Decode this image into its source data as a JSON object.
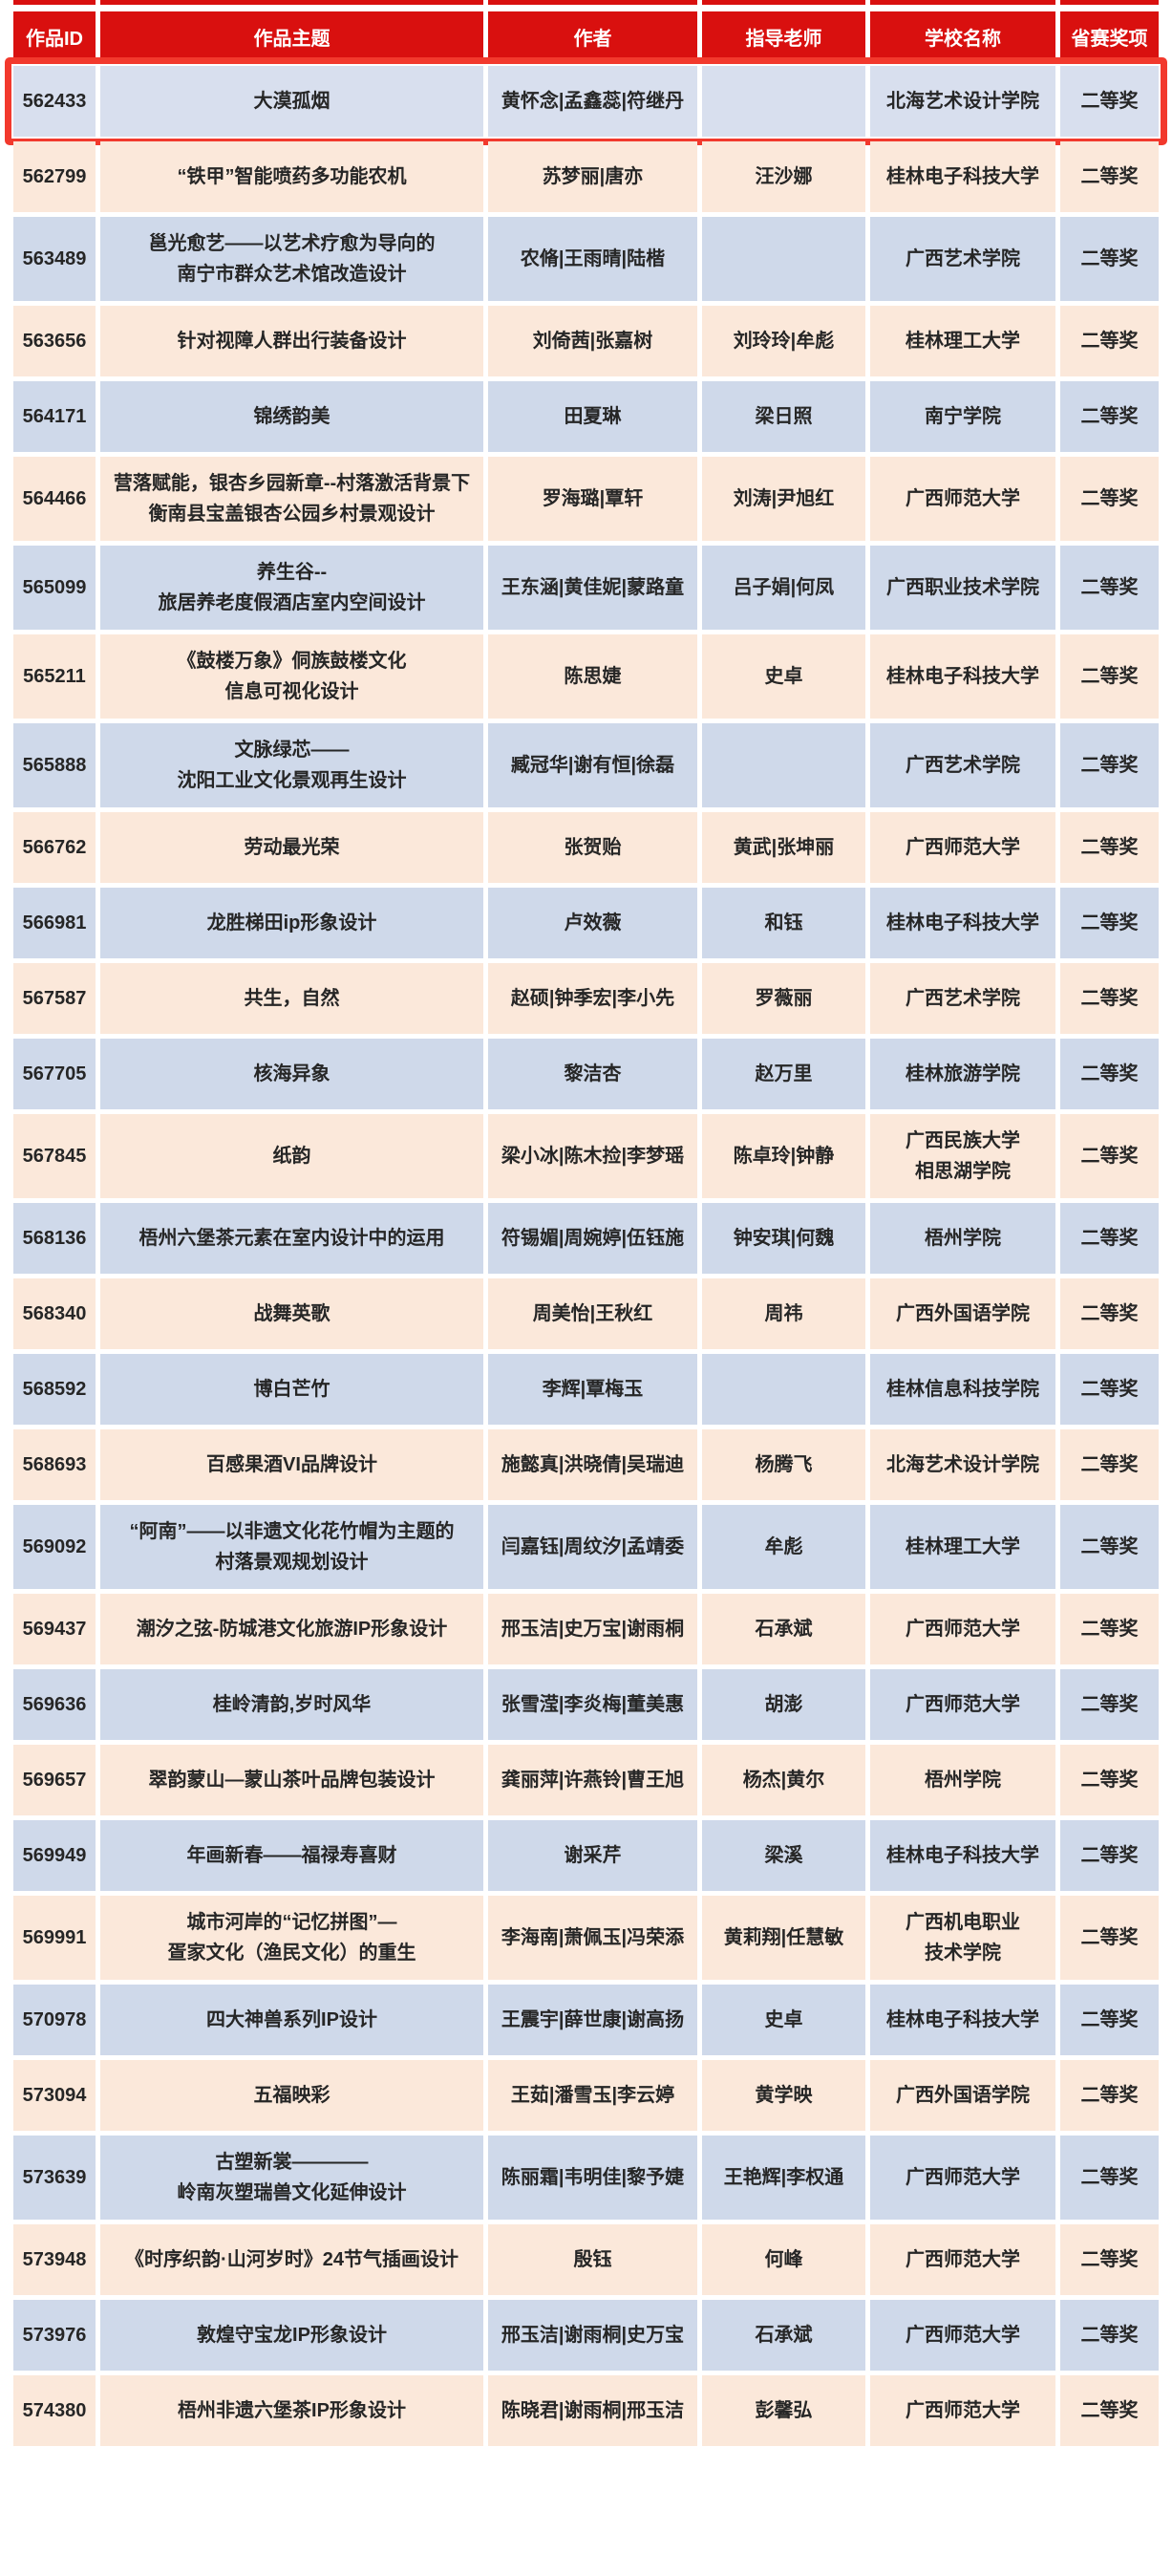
{
  "colors": {
    "header_red": "#d9100f",
    "highlight_ring": "#f2392d",
    "row_blue": "#cfd9ea",
    "row_peach": "#fbe8da",
    "highlight_fill": "#d8dfee",
    "text": "#262626",
    "header_text": "#ffffff",
    "background": "#ffffff"
  },
  "table": {
    "columns": [
      {
        "key": "id",
        "label": "作品ID"
      },
      {
        "key": "theme",
        "label": "作品主题"
      },
      {
        "key": "authors",
        "label": "作者"
      },
      {
        "key": "instructors",
        "label": "指导老师"
      },
      {
        "key": "school",
        "label": "学校名称"
      },
      {
        "key": "award",
        "label": "省赛奖项"
      }
    ],
    "rows": [
      {
        "id": "562433",
        "theme": "大漠孤烟",
        "authors": "黄怀念|孟鑫蕊|符继丹",
        "instructors": "",
        "school": "北海艺术设计学院",
        "award": "二等奖",
        "highlighted": true
      },
      {
        "id": "562799",
        "theme": "“铁甲”智能喷药多功能农机",
        "authors": "苏梦丽|唐亦",
        "instructors": "汪沙娜",
        "school": "桂林电子科技大学",
        "award": "二等奖",
        "highlighted": false
      },
      {
        "id": "563489",
        "theme": "邕光愈艺——以艺术疗愈为导向的\n南宁市群众艺术馆改造设计",
        "authors": "农脩|王雨晴|陆楷",
        "instructors": "",
        "school": "广西艺术学院",
        "award": "二等奖",
        "highlighted": false
      },
      {
        "id": "563656",
        "theme": "针对视障人群出行装备设计",
        "authors": "刘倚茜|张嘉树",
        "instructors": "刘玲玲|牟彪",
        "school": "桂林理工大学",
        "award": "二等奖",
        "highlighted": false
      },
      {
        "id": "564171",
        "theme": "锦绣韵美",
        "authors": "田夏琳",
        "instructors": "梁日照",
        "school": "南宁学院",
        "award": "二等奖",
        "highlighted": false
      },
      {
        "id": "564466",
        "theme": "营落赋能，银杏乡园新章--村落激活背景下\n衡南县宝盖银杏公园乡村景观设计",
        "authors": "罗海璐|覃轩",
        "instructors": "刘涛|尹旭红",
        "school": "广西师范大学",
        "award": "二等奖",
        "highlighted": false
      },
      {
        "id": "565099",
        "theme": "养生谷--\n旅居养老度假酒店室内空间设计",
        "authors": "王东涵|黄佳妮|蒙路童",
        "instructors": "吕子娟|何凤",
        "school": "广西职业技术学院",
        "award": "二等奖",
        "highlighted": false
      },
      {
        "id": "565211",
        "theme": "《鼓楼万象》侗族鼓楼文化\n信息可视化设计",
        "authors": "陈思婕",
        "instructors": "史卓",
        "school": "桂林电子科技大学",
        "award": "二等奖",
        "highlighted": false
      },
      {
        "id": "565888",
        "theme": "文脉绿芯——\n沈阳工业文化景观再生设计",
        "authors": "臧冠华|谢有恒|徐磊",
        "instructors": "",
        "school": "广西艺术学院",
        "award": "二等奖",
        "highlighted": false
      },
      {
        "id": "566762",
        "theme": "劳动最光荣",
        "authors": "张贺贻",
        "instructors": "黄武|张坤丽",
        "school": "广西师范大学",
        "award": "二等奖",
        "highlighted": false
      },
      {
        "id": "566981",
        "theme": "龙胜梯田ip形象设计",
        "authors": "卢效薇",
        "instructors": "和钰",
        "school": "桂林电子科技大学",
        "award": "二等奖",
        "highlighted": false
      },
      {
        "id": "567587",
        "theme": "共生，自然",
        "authors": "赵硕|钟季宏|李小先",
        "instructors": "罗薇丽",
        "school": "广西艺术学院",
        "award": "二等奖",
        "highlighted": false
      },
      {
        "id": "567705",
        "theme": "核海异象",
        "authors": "黎洁杏",
        "instructors": "赵万里",
        "school": "桂林旅游学院",
        "award": "二等奖",
        "highlighted": false
      },
      {
        "id": "567845",
        "theme": "纸韵",
        "authors": "梁小冰|陈木捡|李梦瑶",
        "instructors": "陈卓玲|钟静",
        "school": "广西民族大学\n相思湖学院",
        "award": "二等奖",
        "highlighted": false
      },
      {
        "id": "568136",
        "theme": "梧州六堡茶元素在室内设计中的运用",
        "authors": "符锡媚|周婉婷|伍钰施",
        "instructors": "钟安琪|何魏",
        "school": "梧州学院",
        "award": "二等奖",
        "highlighted": false
      },
      {
        "id": "568340",
        "theme": "战舞英歌",
        "authors": "周美怡|王秋红",
        "instructors": "周祎",
        "school": "广西外国语学院",
        "award": "二等奖",
        "highlighted": false
      },
      {
        "id": "568592",
        "theme": "博白芒竹",
        "authors": "李辉|覃梅玉",
        "instructors": "",
        "school": "桂林信息科技学院",
        "award": "二等奖",
        "highlighted": false
      },
      {
        "id": "568693",
        "theme": "百感果酒VI品牌设计",
        "authors": "施懿真|洪晓倩|吴瑞迪",
        "instructors": "杨腾飞",
        "school": "北海艺术设计学院",
        "award": "二等奖",
        "highlighted": false
      },
      {
        "id": "569092",
        "theme": "“阿南”——以非遗文化花竹帽为主题的\n村落景观规划设计",
        "authors": "闫嘉钰|周纹汐|孟靖委",
        "instructors": "牟彪",
        "school": "桂林理工大学",
        "award": "二等奖",
        "highlighted": false
      },
      {
        "id": "569437",
        "theme": "潮汐之弦-防城港文化旅游IP形象设计",
        "authors": "邢玉洁|史万宝|谢雨桐",
        "instructors": "石承斌",
        "school": "广西师范大学",
        "award": "二等奖",
        "highlighted": false
      },
      {
        "id": "569636",
        "theme": "桂岭清韵,岁时风华",
        "authors": "张雪滢|李炎梅|董美惠",
        "instructors": "胡澎",
        "school": "广西师范大学",
        "award": "二等奖",
        "highlighted": false
      },
      {
        "id": "569657",
        "theme": "翠韵蒙山—蒙山茶叶品牌包装设计",
        "authors": "龚丽萍|许燕铃|曹王旭",
        "instructors": "杨杰|黄尔",
        "school": "梧州学院",
        "award": "二等奖",
        "highlighted": false
      },
      {
        "id": "569949",
        "theme": "年画新春——福禄寿喜财",
        "authors": "谢采芹",
        "instructors": "梁溪",
        "school": "桂林电子科技大学",
        "award": "二等奖",
        "highlighted": false
      },
      {
        "id": "569991",
        "theme": "城市河岸的“记忆拼图”—\n疍家文化（渔民文化）的重生",
        "authors": "李海南|萧佩玉|冯荣添",
        "instructors": "黄莉翔|任慧敏",
        "school": "广西机电职业\n技术学院",
        "award": "二等奖",
        "highlighted": false
      },
      {
        "id": "570978",
        "theme": "四大神兽系列IP设计",
        "authors": "王震宇|薛世康|谢高扬",
        "instructors": "史卓",
        "school": "桂林电子科技大学",
        "award": "二等奖",
        "highlighted": false
      },
      {
        "id": "573094",
        "theme": "五福映彩",
        "authors": "王茹|潘雪玉|李云婷",
        "instructors": "黄学映",
        "school": "广西外国语学院",
        "award": "二等奖",
        "highlighted": false
      },
      {
        "id": "573639",
        "theme": "古塑新裳————\n岭南灰塑瑞兽文化延伸设计",
        "authors": "陈丽霜|韦明佳|黎予婕",
        "instructors": "王艳辉|李权通",
        "school": "广西师范大学",
        "award": "二等奖",
        "highlighted": false
      },
      {
        "id": "573948",
        "theme": "《时序织韵·山河岁时》24节气插画设计",
        "authors": "殷钰",
        "instructors": "何峰",
        "school": "广西师范大学",
        "award": "二等奖",
        "highlighted": false
      },
      {
        "id": "573976",
        "theme": "敦煌守宝龙IP形象设计",
        "authors": "邢玉洁|谢雨桐|史万宝",
        "instructors": "石承斌",
        "school": "广西师范大学",
        "award": "二等奖",
        "highlighted": false
      },
      {
        "id": "574380",
        "theme": "梧州非遗六堡茶IP形象设计",
        "authors": "陈晓君|谢雨桐|邢玉洁",
        "instructors": "彭馨弘",
        "school": "广西师范大学",
        "award": "二等奖",
        "highlighted": false
      }
    ]
  }
}
